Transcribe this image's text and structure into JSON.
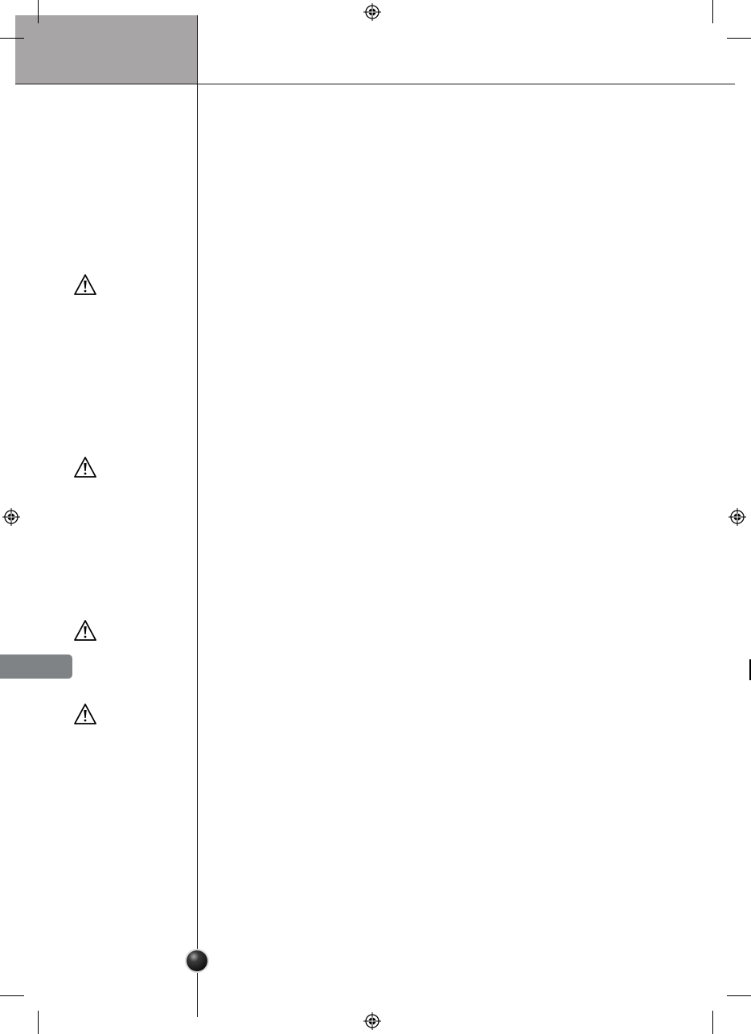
{
  "colors": {
    "header_block": "#a7a5a6",
    "side_tab": "#7f8385",
    "rule": "#1a1a1a",
    "page_marker": "#2a2a2a"
  },
  "icons": {
    "warning": "warning-triangle-icon",
    "registration": "registration-mark-icon",
    "page_marker": "page-marker-ball-icon"
  }
}
